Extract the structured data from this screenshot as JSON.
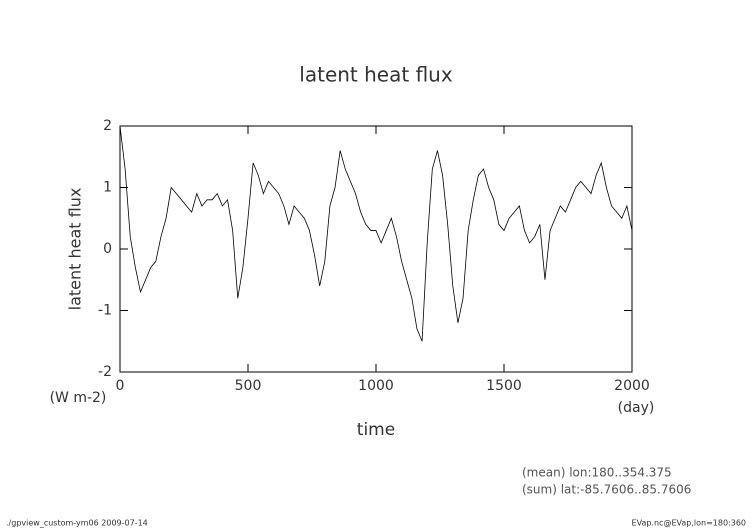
{
  "chart_data": {
    "type": "line",
    "title": "latent heat flux",
    "y_label": "latent heat flux",
    "y_units": "(W m-2)",
    "x_label": "time",
    "x_units": "(day)",
    "annotations": [
      "(mean) lon:180..354.375",
      "(sum) lat:-85.7606..85.7606"
    ],
    "footer_left": "./gpview_custom-ym06  2009-07-14",
    "footer_right": "EVap.nc@EVap,lon=180:360",
    "xlim": [
      0,
      2000
    ],
    "xticks": [
      0,
      500,
      1000,
      1500,
      2000
    ],
    "ylim": [
      -2,
      2
    ],
    "yticks": [
      -2,
      -1,
      0,
      1,
      2
    ],
    "series": [
      {
        "color": "#000000",
        "x": [
          0,
          20,
          40,
          60,
          80,
          100,
          120,
          140,
          160,
          180,
          200,
          220,
          240,
          260,
          280,
          300,
          320,
          340,
          360,
          380,
          400,
          420,
          440,
          460,
          480,
          500,
          520,
          540,
          560,
          580,
          600,
          620,
          640,
          660,
          680,
          700,
          720,
          740,
          760,
          780,
          800,
          820,
          840,
          860,
          880,
          900,
          920,
          940,
          960,
          980,
          1000,
          1020,
          1040,
          1060,
          1080,
          1100,
          1120,
          1140,
          1160,
          1180,
          1200,
          1220,
          1240,
          1260,
          1280,
          1300,
          1320,
          1340,
          1360,
          1380,
          1400,
          1420,
          1440,
          1460,
          1480,
          1500,
          1520,
          1540,
          1560,
          1580,
          1600,
          1620,
          1640,
          1660,
          1680,
          1700,
          1720,
          1740,
          1760,
          1780,
          1800,
          1820,
          1840,
          1860,
          1880,
          1900,
          1920,
          1940,
          1960,
          1980,
          2000
        ],
        "values": [
          2.0,
          1.3,
          0.2,
          -0.3,
          -0.7,
          -0.5,
          -0.3,
          -0.2,
          0.2,
          0.5,
          1.0,
          0.9,
          0.8,
          0.7,
          0.6,
          0.9,
          0.7,
          0.8,
          0.8,
          0.9,
          0.7,
          0.8,
          0.3,
          -0.8,
          -0.3,
          0.5,
          1.4,
          1.2,
          0.9,
          1.1,
          1.0,
          0.9,
          0.7,
          0.4,
          0.7,
          0.6,
          0.5,
          0.3,
          -0.1,
          -0.6,
          -0.2,
          0.7,
          1.0,
          1.6,
          1.3,
          1.1,
          0.9,
          0.6,
          0.4,
          0.3,
          0.3,
          0.1,
          0.3,
          0.5,
          0.2,
          -0.2,
          -0.5,
          -0.8,
          -1.3,
          -1.5,
          0.1,
          1.3,
          1.6,
          1.2,
          0.4,
          -0.6,
          -1.2,
          -0.8,
          0.3,
          0.8,
          1.2,
          1.3,
          1.0,
          0.8,
          0.4,
          0.3,
          0.5,
          0.6,
          0.7,
          0.3,
          0.1,
          0.2,
          0.4,
          -0.5,
          0.3,
          0.5,
          0.7,
          0.6,
          0.8,
          1.0,
          1.1,
          1.0,
          0.9,
          1.2,
          1.4,
          1.0,
          0.7,
          0.6,
          0.5,
          0.7,
          0.3
        ]
      }
    ]
  }
}
